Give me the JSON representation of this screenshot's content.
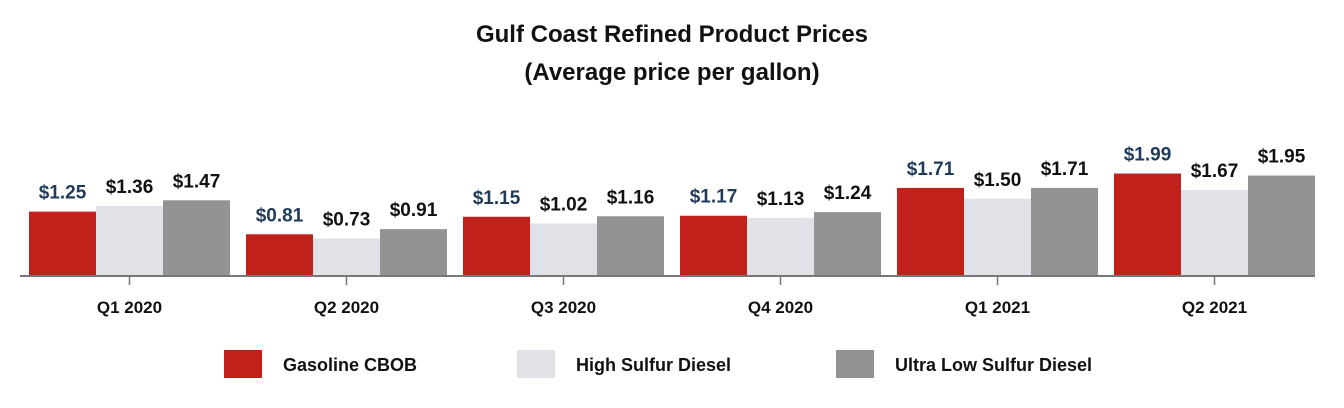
{
  "chart_data": {
    "type": "bar",
    "title": "Gulf Coast Refined Product Prices",
    "subtitle": "(Average price per gallon)",
    "xlabel": "",
    "ylabel": "",
    "ylim": [
      0,
      2.5
    ],
    "grid": false,
    "legend_position": "bottom",
    "categories": [
      "Q1 2020",
      "Q2 2020",
      "Q3 2020",
      "Q4 2020",
      "Q1 2021",
      "Q2 2021"
    ],
    "series": [
      {
        "name": "Gasoline CBOB",
        "color": "#c0221b",
        "label_color": "#1f3a5a",
        "values": [
          1.25,
          0.81,
          1.15,
          1.17,
          1.71,
          1.99
        ],
        "labels": [
          "$1.25",
          "$0.81",
          "$1.15",
          "$1.17",
          "$1.71",
          "$1.99"
        ]
      },
      {
        "name": "High Sulfur Diesel",
        "color": "#e1e2e7",
        "label_color": "#111111",
        "values": [
          1.36,
          0.73,
          1.02,
          1.13,
          1.5,
          1.67
        ],
        "labels": [
          "$1.36",
          "$0.73",
          "$1.02",
          "$1.13",
          "$1.50",
          "$1.67"
        ]
      },
      {
        "name": "Ultra Low Sulfur Diesel",
        "color": "#939393",
        "label_color": "#111111",
        "values": [
          1.47,
          0.91,
          1.16,
          1.24,
          1.71,
          1.95
        ],
        "labels": [
          "$1.47",
          "$0.91",
          "$1.16",
          "$1.24",
          "$1.71",
          "$1.95"
        ]
      }
    ]
  }
}
